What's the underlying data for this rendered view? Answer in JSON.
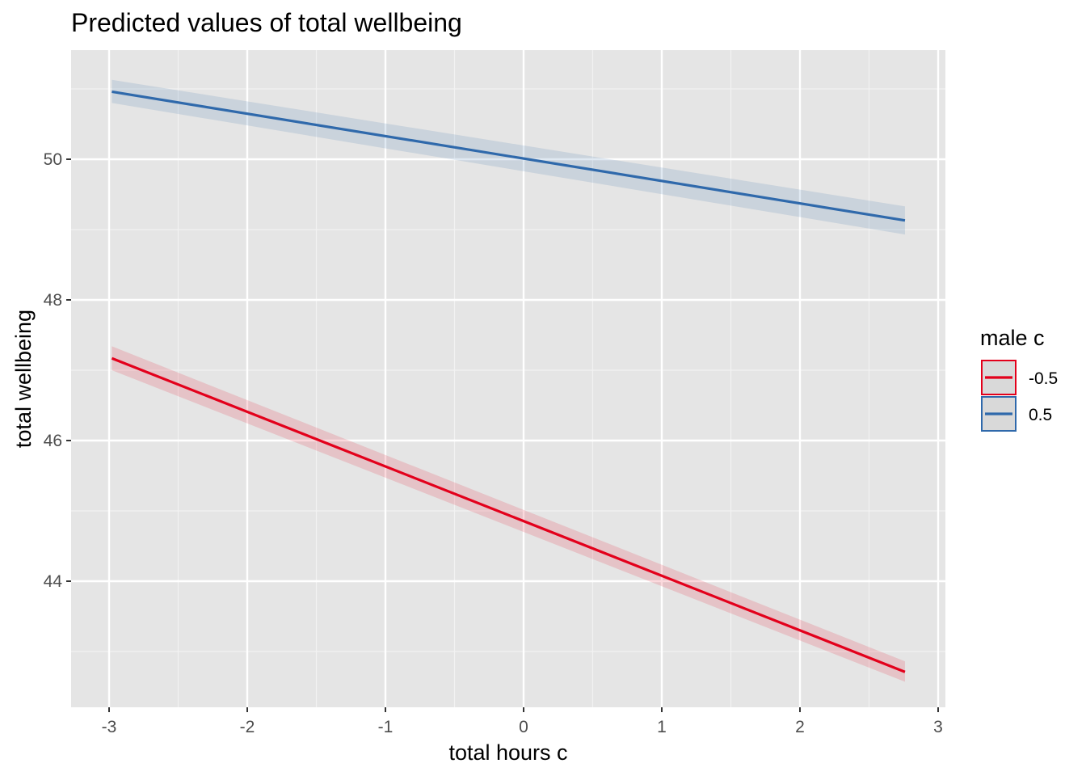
{
  "chart_data": {
    "type": "line",
    "title": "Predicted values of total wellbeing",
    "xlabel": "total hours c",
    "ylabel": "total wellbeing",
    "xlim": [
      -3.28,
      3.05
    ],
    "ylim": [
      42.2,
      51.6
    ],
    "x_ticks": [
      -3,
      -2,
      -1,
      0,
      1,
      2,
      3
    ],
    "x_tick_labels": [
      "-3",
      "-2",
      "-1",
      "0",
      "1",
      "2",
      "3"
    ],
    "y_ticks": [
      44,
      46,
      48,
      50
    ],
    "y_tick_labels": [
      "44",
      "46",
      "48",
      "50"
    ],
    "grid": true,
    "legend": {
      "title": "male c",
      "position": "right"
    },
    "series": [
      {
        "name": "-0.5",
        "color": "#e3001b",
        "x": [
          -2.98,
          2.76
        ],
        "y": [
          47.17,
          42.71
        ],
        "ci_lower": [
          47.0,
          42.57
        ],
        "ci_upper": [
          47.34,
          42.86
        ]
      },
      {
        "name": "0.5",
        "color": "#2f69ab",
        "x": [
          -2.98,
          2.76
        ],
        "y": [
          50.96,
          49.13
        ],
        "ci_lower": [
          50.8,
          48.93
        ],
        "ci_upper": [
          51.13,
          49.33
        ]
      }
    ]
  }
}
